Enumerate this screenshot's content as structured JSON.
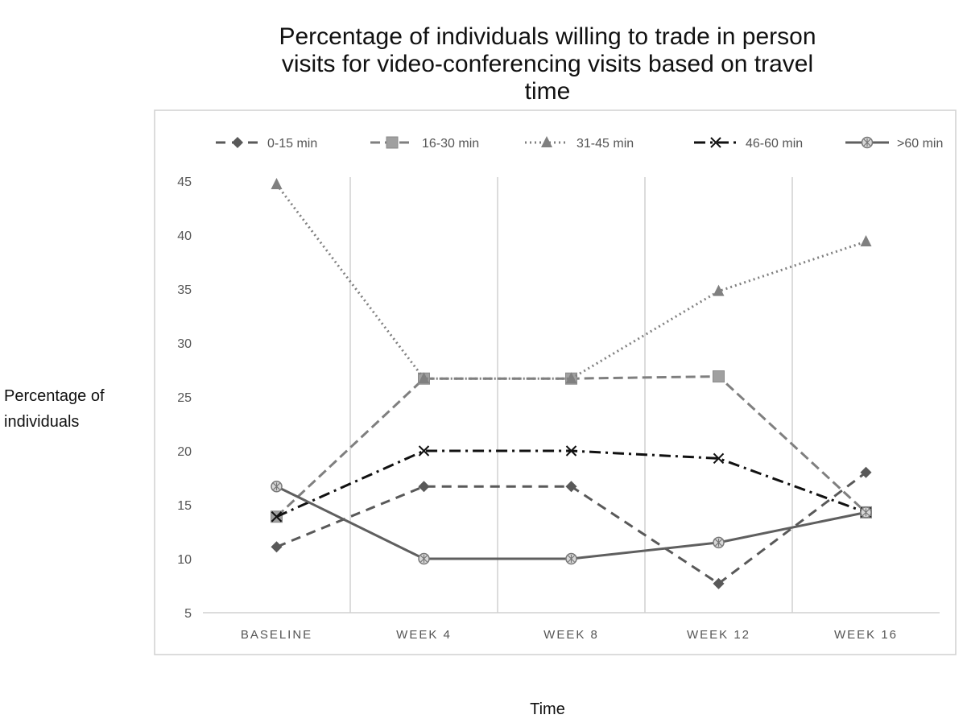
{
  "chart_data": {
    "type": "line",
    "title_lines": [
      "Percentage of individuals willing to trade in person",
      "visits for video-conferencing visits based on travel",
      "time"
    ],
    "xlabel": "Time",
    "ylabel_lines": [
      "Percentage of",
      "individuals"
    ],
    "categories": [
      "BASELINE",
      "WEEK 4",
      "WEEK 8",
      "WEEK 12",
      "WEEK 16"
    ],
    "ylim": [
      5,
      45
    ],
    "yticks": [
      5,
      10,
      15,
      20,
      25,
      30,
      35,
      40,
      45
    ],
    "grid": "vertical",
    "legend_position": "top",
    "series": [
      {
        "name": "0-15 min",
        "values": [
          11.1,
          16.7,
          16.7,
          7.7,
          18.0
        ],
        "color": "#595959",
        "dash": "12,8",
        "marker": "diamond"
      },
      {
        "name": "16-30 min",
        "values": [
          13.9,
          26.7,
          26.7,
          26.9,
          14.3
        ],
        "color": "#7f7f7f",
        "dash": "12,6",
        "marker": "square"
      },
      {
        "name": "31-45 min",
        "values": [
          44.7,
          26.7,
          26.7,
          34.8,
          39.4
        ],
        "color": "#808080",
        "dash": "2,4",
        "marker": "triangle"
      },
      {
        "name": "46-60 min",
        "values": [
          13.9,
          20.0,
          20.0,
          19.3,
          14.3
        ],
        "color": "#111111",
        "dash": "14,6,3,6",
        "marker": "x"
      },
      {
        "name": ">60 min",
        "values": [
          16.7,
          10.0,
          10.0,
          11.5,
          14.3
        ],
        "color": "#5f5f5f",
        "dash": "",
        "marker": "star"
      }
    ]
  }
}
